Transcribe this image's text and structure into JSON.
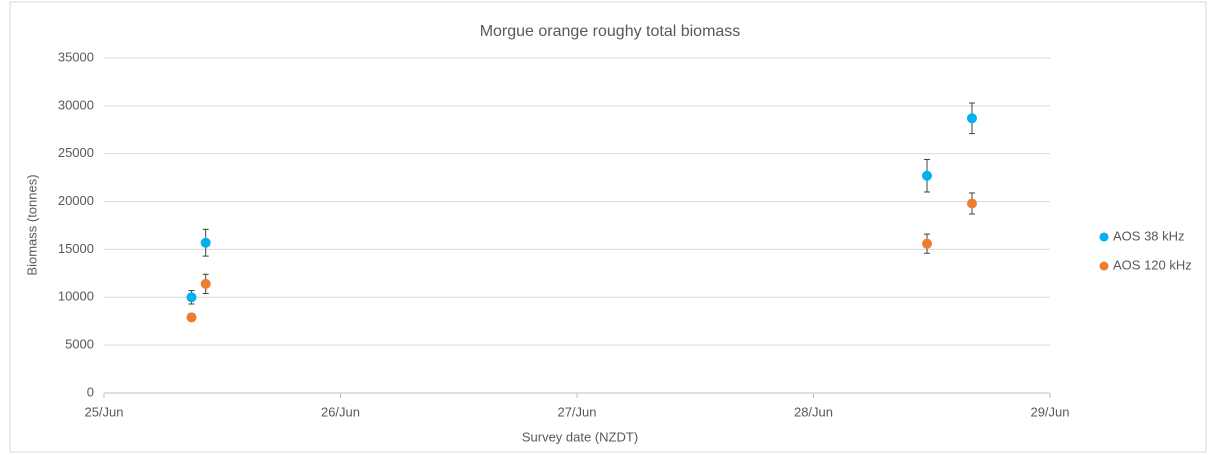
{
  "chart_data": {
    "type": "scatter",
    "title": "Morgue orange roughy total biomass",
    "x_label": "Survey date (NZDT)",
    "y_label": "Biomass (tonnes)",
    "xlim": [
      25,
      29
    ],
    "xticks": [
      {
        "value": 25,
        "label": "25/Jun"
      },
      {
        "value": 26,
        "label": "26/Jun"
      },
      {
        "value": 27,
        "label": "27/Jun"
      },
      {
        "value": 28,
        "label": "28/Jun"
      },
      {
        "value": 29,
        "label": "29/Jun"
      }
    ],
    "ylim": [
      0,
      35000
    ],
    "yticks": [
      0,
      5000,
      10000,
      15000,
      20000,
      25000,
      30000,
      35000
    ],
    "grid": true,
    "legend": "right",
    "series": [
      {
        "name": "AOS 38 kHz",
        "color": "#00b0f0",
        "x": [
          25.37,
          25.43,
          28.48,
          28.67
        ],
        "values": [
          10000,
          15700,
          22700,
          28700
        ],
        "errors": [
          700,
          1400,
          1700,
          1600
        ]
      },
      {
        "name": "AOS 120 kHz",
        "color": "#ed7d31",
        "x": [
          25.37,
          25.43,
          28.48,
          28.67
        ],
        "values": [
          7900,
          11400,
          15600,
          19800
        ],
        "errors": [
          400,
          1000,
          1000,
          1100
        ]
      }
    ]
  }
}
